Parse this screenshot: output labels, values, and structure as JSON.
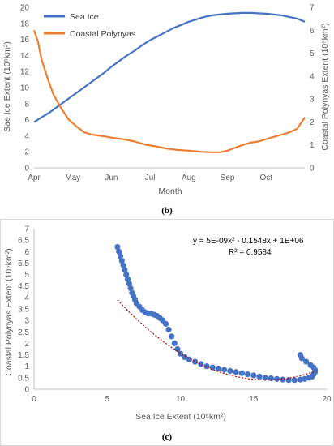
{
  "colors": {
    "sea_ice": "#4472C4",
    "polynya": "#ED7D31",
    "scatter": "#4472C4",
    "trend": "#C00000",
    "axis": "#BFBFBF"
  },
  "panel_b_label": "(b)",
  "panel_c_label": "(c)",
  "chart_data": [
    {
      "type": "line",
      "panel": "(b)",
      "title": "",
      "xlabel": "Month",
      "ylabel_left": "Sae Ice Extent (10⁶km²)",
      "ylabel_right": "Coastal Polynyas Extent (10⁵km²)",
      "categories": [
        "Apr",
        "May",
        "Jun",
        "Jul",
        "Aug",
        "Sep",
        "Oct"
      ],
      "ylim_left": [
        0,
        20
      ],
      "ylim_right": [
        0,
        7
      ],
      "yticks_left": [
        "0",
        "2",
        "4",
        "6",
        "8",
        "10",
        "12",
        "14",
        "16",
        "18",
        "20"
      ],
      "yticks_right": [
        "0",
        "1",
        "2",
        "3",
        "4",
        "5",
        "6",
        "7"
      ],
      "legend": "top-left",
      "grid": false,
      "series": [
        {
          "name": "Sea Ice",
          "axis": "left",
          "x": [
            0.0,
            0.2,
            0.4,
            0.6,
            0.8,
            1.0,
            1.2,
            1.4,
            1.6,
            1.8,
            2.0,
            2.2,
            2.4,
            2.6,
            2.8,
            3.0,
            3.2,
            3.4,
            3.6,
            3.8,
            4.0,
            4.2,
            4.4,
            4.6,
            4.8,
            5.0,
            5.2,
            5.4,
            5.6,
            5.8,
            6.0,
            6.2,
            6.4,
            6.6,
            6.8,
            7.0
          ],
          "values": [
            5.7,
            6.3,
            6.9,
            7.6,
            8.3,
            9.0,
            9.7,
            10.4,
            11.1,
            11.8,
            12.6,
            13.3,
            14.0,
            14.6,
            15.3,
            15.9,
            16.4,
            16.9,
            17.4,
            17.8,
            18.2,
            18.5,
            18.8,
            19.0,
            19.1,
            19.2,
            19.25,
            19.3,
            19.3,
            19.25,
            19.2,
            19.1,
            19.0,
            18.8,
            18.6,
            18.2
          ]
        },
        {
          "name": "Coastal Polynyas",
          "axis": "right",
          "x": [
            0.0,
            0.1,
            0.2,
            0.35,
            0.5,
            0.7,
            0.9,
            1.1,
            1.3,
            1.5,
            1.8,
            2.0,
            2.3,
            2.6,
            2.9,
            3.1,
            3.4,
            3.7,
            4.0,
            4.3,
            4.6,
            4.8,
            5.0,
            5.2,
            5.4,
            5.6,
            5.8,
            6.0,
            6.2,
            6.4,
            6.6,
            6.8,
            7.0
          ],
          "values": [
            6.0,
            5.5,
            4.7,
            3.9,
            3.2,
            2.6,
            2.1,
            1.8,
            1.55,
            1.45,
            1.38,
            1.32,
            1.25,
            1.15,
            1.0,
            0.95,
            0.85,
            0.78,
            0.75,
            0.7,
            0.68,
            0.68,
            0.75,
            0.88,
            1.0,
            1.1,
            1.15,
            1.25,
            1.35,
            1.45,
            1.55,
            1.7,
            2.2
          ]
        }
      ]
    },
    {
      "type": "scatter",
      "panel": "(c)",
      "title": "",
      "xlabel": "Sea Ice Extent (10⁶km²)",
      "ylabel": "Coastal Polynyas Extent (10⁵km²)",
      "xlim": [
        0,
        20
      ],
      "ylim": [
        0,
        7
      ],
      "xticks": [
        "0",
        "5",
        "10",
        "15",
        "20"
      ],
      "yticks": [
        "0",
        "0.5",
        "1",
        "1.5",
        "2",
        "2.5",
        "3",
        "3.5",
        "4",
        "4.5",
        "5",
        "5.5",
        "6",
        "6.5",
        "7"
      ],
      "equation": "y = 5E-09x² - 0.1548x + 1E+06",
      "r_squared": "R² = 0.9584",
      "trendline": {
        "a": 0.0337,
        "b": -1.07,
        "c": 8.9
      },
      "points": {
        "x": [
          5.7,
          5.8,
          5.9,
          6.0,
          6.1,
          6.2,
          6.3,
          6.4,
          6.5,
          6.6,
          6.7,
          6.8,
          6.9,
          7.0,
          7.2,
          7.4,
          7.6,
          7.8,
          8.0,
          8.2,
          8.4,
          8.6,
          8.8,
          9.0,
          9.2,
          9.4,
          9.6,
          9.8,
          10.0,
          10.3,
          10.6,
          11.0,
          11.4,
          11.8,
          12.2,
          12.6,
          13.0,
          13.4,
          13.8,
          14.2,
          14.6,
          15.0,
          15.4,
          15.8,
          16.2,
          16.6,
          17.0,
          17.4,
          17.8,
          18.2,
          18.5,
          18.8,
          19.0,
          19.1,
          19.2,
          19.2,
          19.1,
          18.9,
          18.6,
          18.3,
          18.2
        ],
        "y": [
          6.2,
          6.0,
          5.8,
          5.6,
          5.4,
          5.2,
          5.0,
          4.8,
          4.6,
          4.4,
          4.2,
          4.05,
          3.9,
          3.75,
          3.6,
          3.45,
          3.35,
          3.3,
          3.3,
          3.25,
          3.2,
          3.1,
          3.0,
          2.85,
          2.6,
          2.3,
          2.0,
          1.75,
          1.55,
          1.4,
          1.3,
          1.2,
          1.1,
          1.0,
          0.95,
          0.9,
          0.85,
          0.8,
          0.75,
          0.7,
          0.65,
          0.6,
          0.55,
          0.5,
          0.48,
          0.45,
          0.42,
          0.4,
          0.4,
          0.42,
          0.45,
          0.5,
          0.55,
          0.65,
          0.75,
          0.85,
          0.95,
          1.05,
          1.2,
          1.35,
          1.5
        ]
      }
    }
  ]
}
